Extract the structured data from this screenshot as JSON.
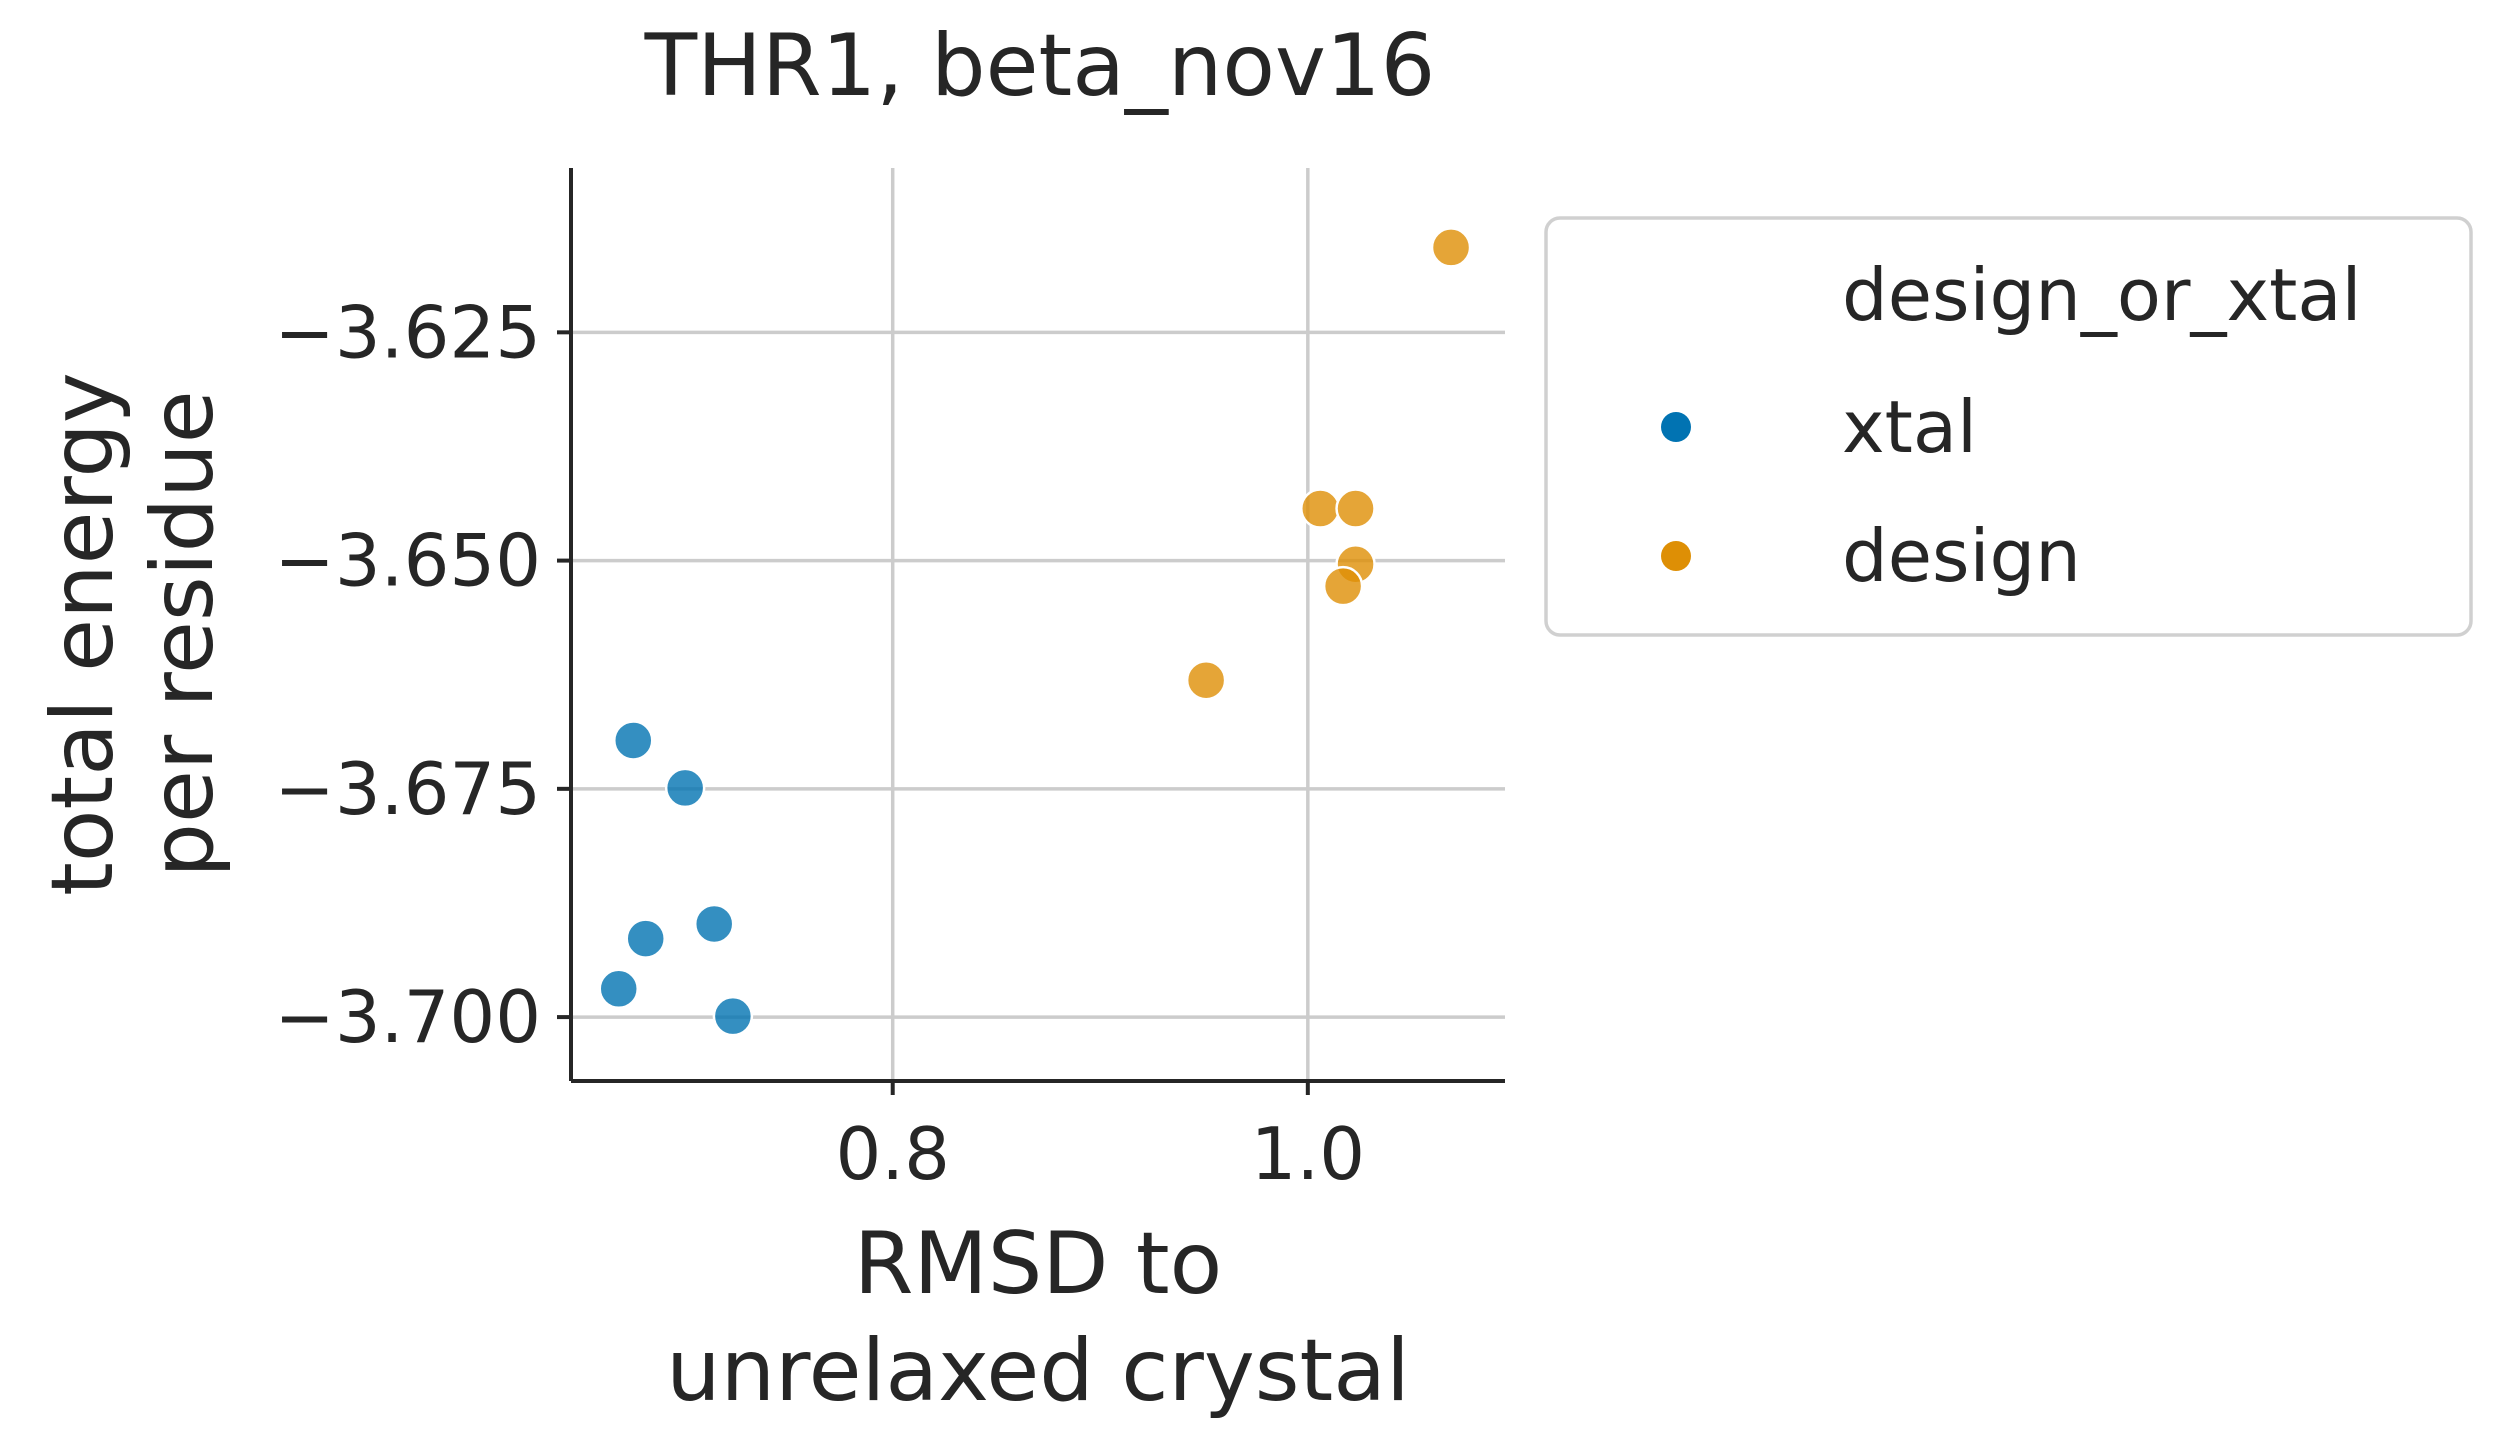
{
  "chart_data": {
    "type": "scatter",
    "title": "THR1, beta_nov16",
    "xlabel": [
      "RMSD to",
      "unrelaxed crystal"
    ],
    "ylabel": [
      "total energy",
      "per residue"
    ],
    "xlim": [
      0.645,
      1.095
    ],
    "ylim": [
      -3.707,
      -3.607
    ],
    "xticks": [
      {
        "value": 0.8,
        "label": "0.8"
      },
      {
        "value": 1.0,
        "label": "1.0"
      }
    ],
    "yticks": [
      {
        "value": -3.625,
        "label": "−3.625"
      },
      {
        "value": -3.65,
        "label": "−3.650"
      },
      {
        "value": -3.675,
        "label": "−3.675"
      },
      {
        "value": -3.7,
        "label": "−3.700"
      }
    ],
    "grid": true,
    "legend": {
      "title": "design_or_xtal",
      "placement": "outside-right",
      "entries": [
        {
          "label": "xtal",
          "color": "#0173b2"
        },
        {
          "label": "design",
          "color": "#de8f05"
        }
      ]
    },
    "series": [
      {
        "name": "xtal",
        "color": "#0173b2",
        "points": [
          {
            "x": 0.675,
            "y": -3.6697
          },
          {
            "x": 0.7,
            "y": -3.6749
          },
          {
            "x": 0.714,
            "y": -3.6898
          },
          {
            "x": 0.681,
            "y": -3.6914
          },
          {
            "x": 0.668,
            "y": -3.6969
          },
          {
            "x": 0.723,
            "y": -3.6999
          }
        ]
      },
      {
        "name": "design",
        "color": "#de8f05",
        "points": [
          {
            "x": 1.069,
            "y": -3.6157
          },
          {
            "x": 1.006,
            "y": -3.6443
          },
          {
            "x": 1.023,
            "y": -3.6443
          },
          {
            "x": 1.023,
            "y": -3.6504
          },
          {
            "x": 1.017,
            "y": -3.6528
          },
          {
            "x": 0.951,
            "y": -3.6631
          }
        ]
      }
    ]
  }
}
